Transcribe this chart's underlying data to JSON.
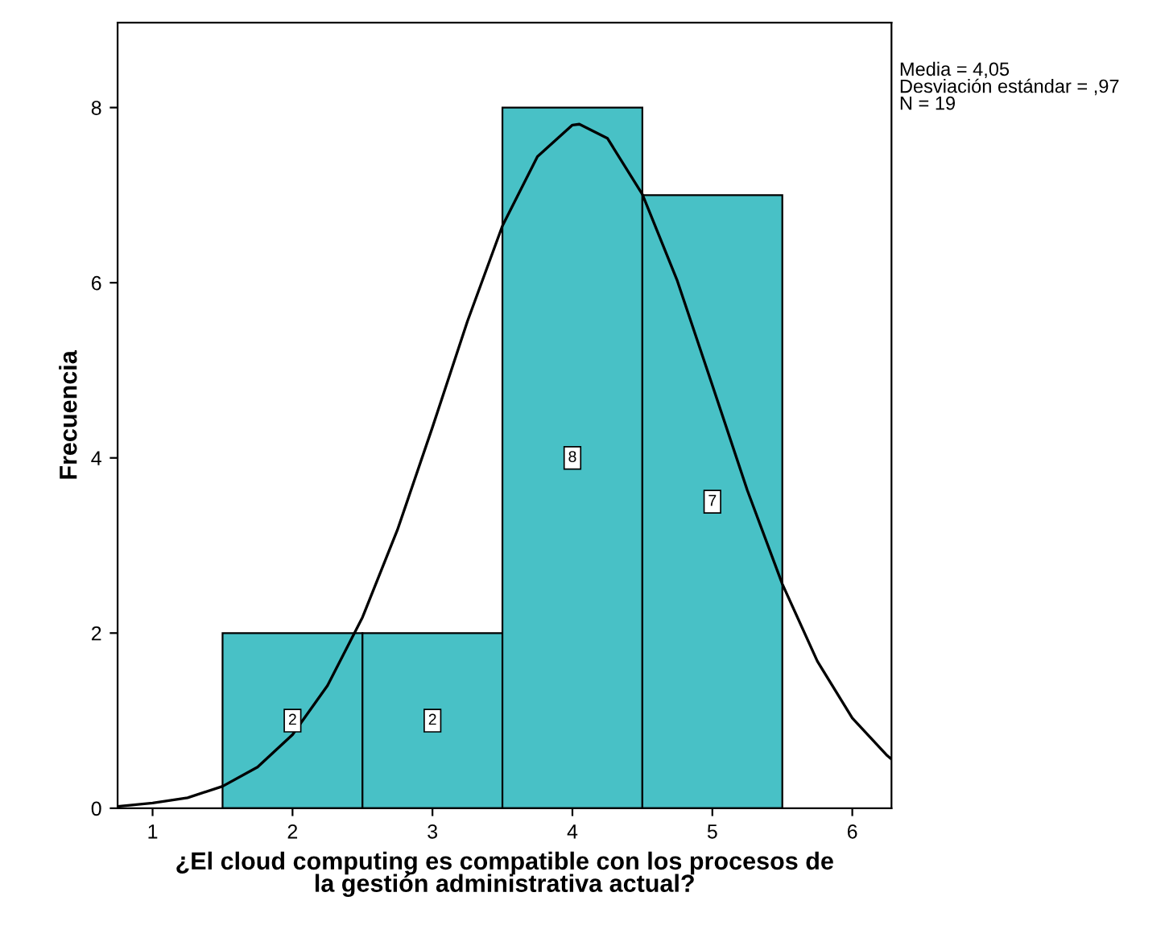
{
  "chart_data": {
    "type": "histogram",
    "xlabel": "¿El cloud computing es compatible con los procesos de\nla gestión administrativa actual?",
    "ylabel": "Frecuencia",
    "series": [
      {
        "bins": [
          1.5,
          2.5,
          3.5,
          4.5,
          5.5
        ],
        "values": [
          2,
          2,
          8,
          7
        ],
        "value_labels": [
          "2",
          "2",
          "8",
          "7"
        ],
        "color": "#48c1c6"
      },
      {
        "type": "line",
        "color": "#000000",
        "x": [
          0.75,
          1.0,
          1.25,
          1.5,
          1.75,
          2.0,
          2.25,
          2.5,
          2.75,
          3.0,
          3.25,
          3.5,
          3.75,
          4.0,
          4.05,
          4.25,
          4.5,
          4.75,
          5.0,
          5.25,
          5.5,
          5.75,
          6.0,
          6.25,
          6.28
        ],
        "values": [
          0.02,
          0.06,
          0.12,
          0.25,
          0.47,
          0.84,
          1.4,
          2.18,
          3.18,
          4.35,
          5.56,
          6.65,
          7.44,
          7.8,
          7.81,
          7.65,
          7.01,
          6.02,
          4.83,
          3.63,
          2.56,
          1.68,
          1.03,
          0.6,
          0.56
        ]
      }
    ],
    "annotations": [
      "Media = 4,05",
      "Desviación estándar = ,97",
      "N = 19"
    ],
    "xlim": [
      0.75,
      6.28
    ],
    "ylim": [
      0,
      8.97
    ],
    "xticks": [
      1,
      2,
      3,
      4,
      5,
      6
    ],
    "yticks": [
      0,
      2,
      4,
      6,
      8
    ],
    "grid": false
  }
}
